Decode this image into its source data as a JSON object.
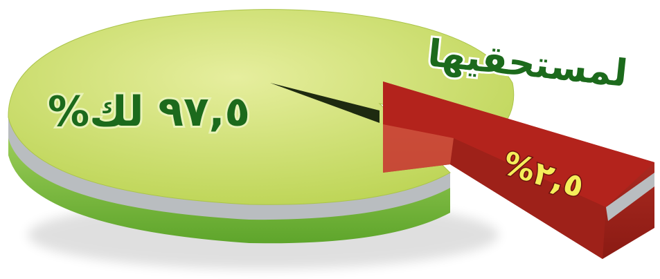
{
  "chart_data": {
    "type": "pie",
    "title": "",
    "slices": [
      {
        "value": 97.5,
        "label": "%٩٧,٥ لك",
        "color": "#cde06a"
      },
      {
        "value": 2.5,
        "label": "%٢,٥",
        "color": "#b3231c"
      }
    ],
    "annotations": [
      {
        "text": "لمستحقيها",
        "color": "#1c6a1c"
      }
    ]
  },
  "colors": {
    "pie_top": "#cde06a",
    "pie_side": "#7fc240",
    "pie_rim": "#b8bcbf",
    "slice_top": "#b3231c",
    "slice_side": "#8f1e16",
    "label_green": "#1c6a1c",
    "label_yellow": "#f4ee5a"
  }
}
